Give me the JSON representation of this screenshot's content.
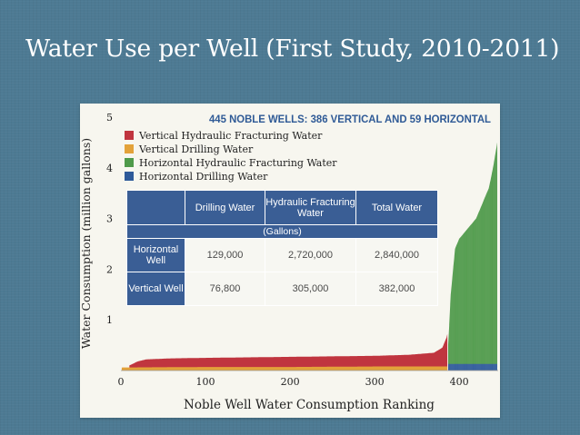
{
  "slide": {
    "title": "Water Use per Well (First Study, 2010-2011)"
  },
  "colors": {
    "vertical_fracturing": "#c0353f",
    "vertical_drilling": "#e3a23a",
    "horizontal_fracturing": "#4f9a4a",
    "horizontal_drilling": "#2e5a9a",
    "table_header": "#3a5e95"
  },
  "chart_data": {
    "type": "bar",
    "title": "445 NOBLE WELLS: 386 VERTICAL AND 59 HORIZONTAL",
    "xlabel": "Noble Well Water Consumption Ranking",
    "ylabel": "Water Consumption (million gallons)",
    "xlim": [
      0,
      445
    ],
    "ylim": [
      0,
      5
    ],
    "xticks": [
      "0",
      "100",
      "200",
      "300",
      "400"
    ],
    "yticks": [
      "1",
      "2",
      "3",
      "4",
      "5"
    ],
    "legend_position": "top-left",
    "series": [
      {
        "name": "Vertical Hydraulic Fracturing Water",
        "x": [
          10,
          20,
          30,
          60,
          100,
          150,
          200,
          250,
          300,
          340,
          370,
          380,
          385,
          386
        ],
        "values": [
          0.1,
          0.18,
          0.22,
          0.24,
          0.25,
          0.26,
          0.27,
          0.28,
          0.29,
          0.31,
          0.35,
          0.45,
          0.65,
          0.72
        ]
      },
      {
        "name": "Vertical Drilling Water",
        "x": [
          1,
          100,
          200,
          300,
          386
        ],
        "values": [
          0.06,
          0.07,
          0.07,
          0.08,
          0.08
        ]
      },
      {
        "name": "Horizontal Hydraulic Fracturing Water",
        "x": [
          387,
          390,
          395,
          400,
          405,
          410,
          415,
          420,
          425,
          430,
          435,
          440,
          445
        ],
        "values": [
          0.5,
          1.5,
          2.4,
          2.6,
          2.7,
          2.8,
          2.9,
          3.0,
          3.2,
          3.4,
          3.6,
          4.0,
          4.5
        ]
      },
      {
        "name": "Horizontal Drilling Water",
        "x": [
          387,
          445
        ],
        "values": [
          0.13,
          0.13
        ]
      }
    ]
  },
  "table": {
    "headers": [
      "",
      "Drilling Water",
      "Hydraulic Fracturing Water",
      "Total Water"
    ],
    "unit_label": "(Gallons)",
    "rows": [
      {
        "label": "Horizontal Well",
        "drilling": "129,000",
        "fracturing": "2,720,000",
        "total": "2,840,000"
      },
      {
        "label": "Vertical Well",
        "drilling": "76,800",
        "fracturing": "305,000",
        "total": "382,000"
      }
    ]
  }
}
